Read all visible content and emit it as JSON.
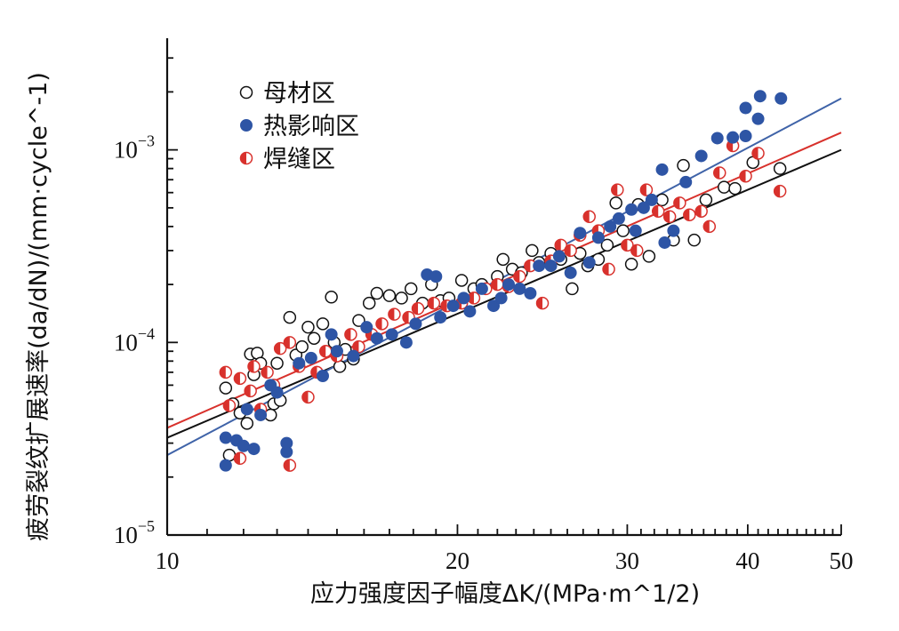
{
  "chart_data": {
    "type": "scatter",
    "x_scale": "log",
    "y_scale": "log",
    "xlim": [
      10,
      50
    ],
    "ylim": [
      1e-05,
      0.0038
    ],
    "xlabel": "应力强度因子幅度ΔK/(MPa·m^1/2)",
    "ylabel": "疲劳裂纹扩展速率(da/dN)/(mm·cycle^-1)",
    "x_ticks": [
      {
        "value": 10,
        "label": "10"
      },
      {
        "value": 20,
        "label": "20"
      },
      {
        "value": 30,
        "label": "30"
      },
      {
        "value": 40,
        "label": "40"
      },
      {
        "value": 50,
        "label": "50"
      }
    ],
    "y_ticks": [
      {
        "value": 1e-05,
        "base": "10",
        "exp": "−5"
      },
      {
        "value": 0.0001,
        "base": "10",
        "exp": "−4"
      },
      {
        "value": 0.001,
        "base": "10",
        "exp": "−3"
      }
    ],
    "legend_position": "top-left",
    "series": [
      {
        "name": "母材区",
        "marker": "open-circle",
        "color": "#111111",
        "fit_line": {
          "x": [
            10,
            50
          ],
          "y": [
            3.2e-05,
            0.001
          ],
          "color": "#111111"
        },
        "points": [
          [
            11.5,
            5.8e-05
          ],
          [
            11.7,
            4.8e-05
          ],
          [
            11.6,
            2.6e-05
          ],
          [
            11.9,
            4.3e-05
          ],
          [
            12.1,
            3.8e-05
          ],
          [
            12.2,
            8.7e-05
          ],
          [
            12.4,
            8.8e-05
          ],
          [
            12.3,
            6.8e-05
          ],
          [
            12.5,
            7.8e-05
          ],
          [
            12.8,
            4.2e-05
          ],
          [
            12.9,
            4.8e-05
          ],
          [
            13.0,
            7.8e-05
          ],
          [
            13.1,
            5e-05
          ],
          [
            13.4,
            0.000135
          ],
          [
            13.6,
            8.6e-05
          ],
          [
            13.8,
            9.5e-05
          ],
          [
            14.0,
            0.00012
          ],
          [
            14.2,
            0.000105
          ],
          [
            14.5,
            0.000125
          ],
          [
            14.8,
            0.000172
          ],
          [
            14.9,
            0.0001
          ],
          [
            15.1,
            7.5e-05
          ],
          [
            15.3,
            9.2e-05
          ],
          [
            15.6,
            8.2e-05
          ],
          [
            15.8,
            0.00013
          ],
          [
            16.2,
            0.00016
          ],
          [
            16.5,
            0.00018
          ],
          [
            17.0,
            0.000175
          ],
          [
            17.5,
            0.00017
          ],
          [
            17.9,
            0.00019
          ],
          [
            18.4,
            0.00016
          ],
          [
            18.8,
            0.0002
          ],
          [
            19.2,
            0.000165
          ],
          [
            19.6,
            0.00017
          ],
          [
            20.2,
            0.00021
          ],
          [
            20.8,
            0.00019
          ],
          [
            21.2,
            0.0002
          ],
          [
            22.0,
            0.00022
          ],
          [
            22.3,
            0.00027
          ],
          [
            22.8,
            0.00024
          ],
          [
            23.3,
            0.00023
          ],
          [
            23.9,
            0.0003
          ],
          [
            24.3,
            0.00026
          ],
          [
            25.0,
            0.00029
          ],
          [
            25.6,
            0.00027
          ],
          [
            26.3,
            0.00019
          ],
          [
            26.8,
            0.00029
          ],
          [
            27.3,
            0.00025
          ],
          [
            28.0,
            0.00027
          ],
          [
            28.6,
            0.00032
          ],
          [
            29.2,
            0.00053
          ],
          [
            29.7,
            0.00038
          ],
          [
            30.3,
            0.000255
          ],
          [
            30.8,
            0.00052
          ],
          [
            31.6,
            0.00028
          ],
          [
            32.6,
            0.00055
          ],
          [
            33.5,
            0.00034
          ],
          [
            34.3,
            0.00083
          ],
          [
            35.2,
            0.00034
          ],
          [
            36.2,
            0.00055
          ],
          [
            37.8,
            0.00064
          ],
          [
            38.8,
            0.00063
          ],
          [
            40.5,
            0.00086
          ],
          [
            43.2,
            0.0008
          ]
        ]
      },
      {
        "name": "热影响区",
        "marker": "filled-circle",
        "color": "#2e55a5",
        "fit_line": {
          "x": [
            10,
            50
          ],
          "y": [
            2.6e-05,
            0.00185
          ],
          "color": "#3f63a8"
        },
        "points": [
          [
            11.5,
            3.2e-05
          ],
          [
            11.5,
            2.3e-05
          ],
          [
            11.8,
            3.1e-05
          ],
          [
            12.0,
            2.9e-05
          ],
          [
            12.1,
            4.5e-05
          ],
          [
            12.3,
            2.8e-05
          ],
          [
            12.5,
            4.2e-05
          ],
          [
            12.8,
            6e-05
          ],
          [
            13.0,
            5.5e-05
          ],
          [
            13.3,
            2.7e-05
          ],
          [
            13.3,
            3e-05
          ],
          [
            13.7,
            7.8e-05
          ],
          [
            14.1,
            8.3e-05
          ],
          [
            14.5,
            6.7e-05
          ],
          [
            14.8,
            0.00011
          ],
          [
            15.0,
            9e-05
          ],
          [
            15.6,
            8.5e-05
          ],
          [
            16.1,
            0.00012
          ],
          [
            16.5,
            0.000105
          ],
          [
            17.1,
            0.00011
          ],
          [
            17.7,
            0.0001
          ],
          [
            18.1,
            0.000125
          ],
          [
            18.6,
            0.000225
          ],
          [
            19.0,
            0.00022
          ],
          [
            19.2,
            0.000135
          ],
          [
            19.8,
            0.000155
          ],
          [
            20.3,
            0.00017
          ],
          [
            20.6,
            0.000145
          ],
          [
            21.2,
            0.00019
          ],
          [
            21.8,
            0.000155
          ],
          [
            22.2,
            0.00017
          ],
          [
            22.6,
            0.0002
          ],
          [
            23.2,
            0.00019
          ],
          [
            23.8,
            0.00018
          ],
          [
            24.3,
            0.00025
          ],
          [
            25.0,
            0.00025
          ],
          [
            25.5,
            0.00028
          ],
          [
            26.2,
            0.00023
          ],
          [
            26.8,
            0.00037
          ],
          [
            27.4,
            0.00026
          ],
          [
            28.0,
            0.00035
          ],
          [
            28.8,
            0.0004
          ],
          [
            29.4,
            0.00044
          ],
          [
            30.3,
            0.00049
          ],
          [
            30.6,
            0.00038
          ],
          [
            31.2,
            0.0005
          ],
          [
            31.8,
            0.00055
          ],
          [
            32.6,
            0.00079
          ],
          [
            32.8,
            0.00033
          ],
          [
            33.5,
            0.00038
          ],
          [
            34.5,
            0.00068
          ],
          [
            35.8,
            0.00093
          ],
          [
            37.2,
            0.00115
          ],
          [
            38.6,
            0.00116
          ],
          [
            39.8,
            0.00118
          ],
          [
            39.8,
            0.00165
          ],
          [
            41.0,
            0.00145
          ],
          [
            41.2,
            0.0019
          ],
          [
            43.3,
            0.00185
          ]
        ]
      },
      {
        "name": "焊缝区",
        "marker": "half-filled-circle",
        "color": "#d8312c",
        "fit_line": {
          "x": [
            10,
            50
          ],
          "y": [
            3.6e-05,
            0.00123
          ],
          "color": "#d8312c"
        },
        "points": [
          [
            11.5,
            7e-05
          ],
          [
            11.6,
            4.7e-05
          ],
          [
            11.9,
            6.5e-05
          ],
          [
            11.9,
            2.5e-05
          ],
          [
            12.2,
            5.6e-05
          ],
          [
            12.3,
            7.5e-05
          ],
          [
            12.5,
            4.5e-05
          ],
          [
            12.7,
            7e-05
          ],
          [
            12.9,
            6e-05
          ],
          [
            13.1,
            9.3e-05
          ],
          [
            13.4,
            2.3e-05
          ],
          [
            13.4,
            0.0001
          ],
          [
            13.7,
            7.5e-05
          ],
          [
            14.0,
            5.2e-05
          ],
          [
            14.3,
            7e-05
          ],
          [
            14.6,
            9e-05
          ],
          [
            15.0,
            8.5e-05
          ],
          [
            15.5,
            0.00011
          ],
          [
            15.8,
            9.5e-05
          ],
          [
            16.3,
            0.00011
          ],
          [
            16.7,
            0.000125
          ],
          [
            17.2,
            0.00014
          ],
          [
            17.8,
            0.000135
          ],
          [
            18.2,
            0.00015
          ],
          [
            18.9,
            0.00016
          ],
          [
            19.5,
            0.000155
          ],
          [
            20.2,
            0.00016
          ],
          [
            20.8,
            0.00017
          ],
          [
            21.4,
            0.00019
          ],
          [
            22.0,
            0.0002
          ],
          [
            22.6,
            0.000195
          ],
          [
            23.2,
            0.00022
          ],
          [
            23.8,
            0.00025
          ],
          [
            24.5,
            0.00016
          ],
          [
            25.0,
            0.000265
          ],
          [
            25.6,
            0.00032
          ],
          [
            26.2,
            0.0003
          ],
          [
            26.8,
            0.00036
          ],
          [
            27.4,
            0.00045
          ],
          [
            28.0,
            0.00038
          ],
          [
            28.7,
            0.00024
          ],
          [
            29.3,
            0.00062
          ],
          [
            30.0,
            0.00032
          ],
          [
            30.7,
            0.0003
          ],
          [
            31.4,
            0.00062
          ],
          [
            32.3,
            0.00048
          ],
          [
            33.2,
            0.00045
          ],
          [
            34.0,
            0.00053
          ],
          [
            34.8,
            0.00046
          ],
          [
            35.8,
            0.00048
          ],
          [
            36.5,
            0.0004
          ],
          [
            37.4,
            0.00076
          ],
          [
            38.6,
            0.00105
          ],
          [
            39.8,
            0.00073
          ],
          [
            41.0,
            0.00096
          ],
          [
            43.2,
            0.00061
          ]
        ]
      }
    ]
  }
}
